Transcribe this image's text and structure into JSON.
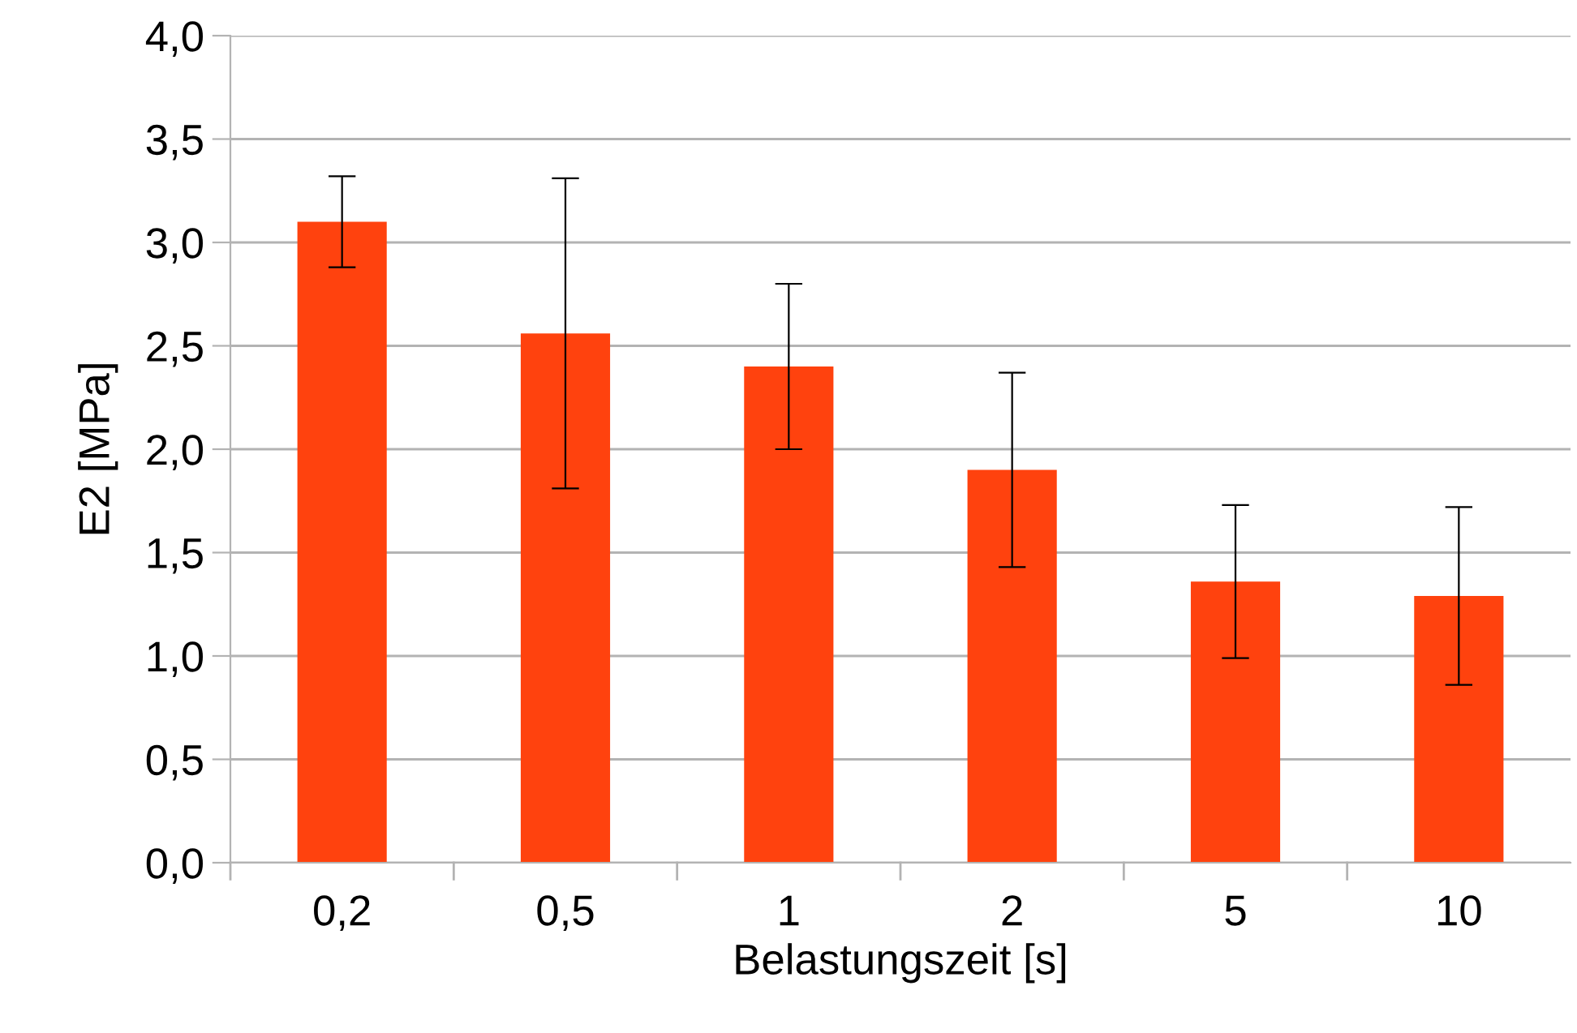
{
  "chart_data": {
    "type": "bar",
    "xlabel": "Belastungszeit [s]",
    "ylabel": "E2 [MPa]",
    "categories": [
      "0,2",
      "0,5",
      "1",
      "2",
      "5",
      "10"
    ],
    "values": [
      3.1,
      2.56,
      2.4,
      1.9,
      1.36,
      1.29
    ],
    "errors": [
      0.22,
      0.75,
      0.4,
      0.47,
      0.37,
      0.43
    ],
    "color": "#ff420e",
    "ylim": [
      0,
      4
    ],
    "yticks": [
      {
        "value": 0,
        "label": "0,0"
      },
      {
        "value": 0.5,
        "label": "0,5"
      },
      {
        "value": 1,
        "label": "1,0"
      },
      {
        "value": 1.5,
        "label": "1,5"
      },
      {
        "value": 2,
        "label": "2,0"
      },
      {
        "value": 2.5,
        "label": "2,5"
      },
      {
        "value": 3,
        "label": "3,0"
      },
      {
        "value": 3.5,
        "label": "3,5"
      },
      {
        "value": 4,
        "label": "4,0"
      }
    ],
    "grid": "y",
    "legend": false
  }
}
